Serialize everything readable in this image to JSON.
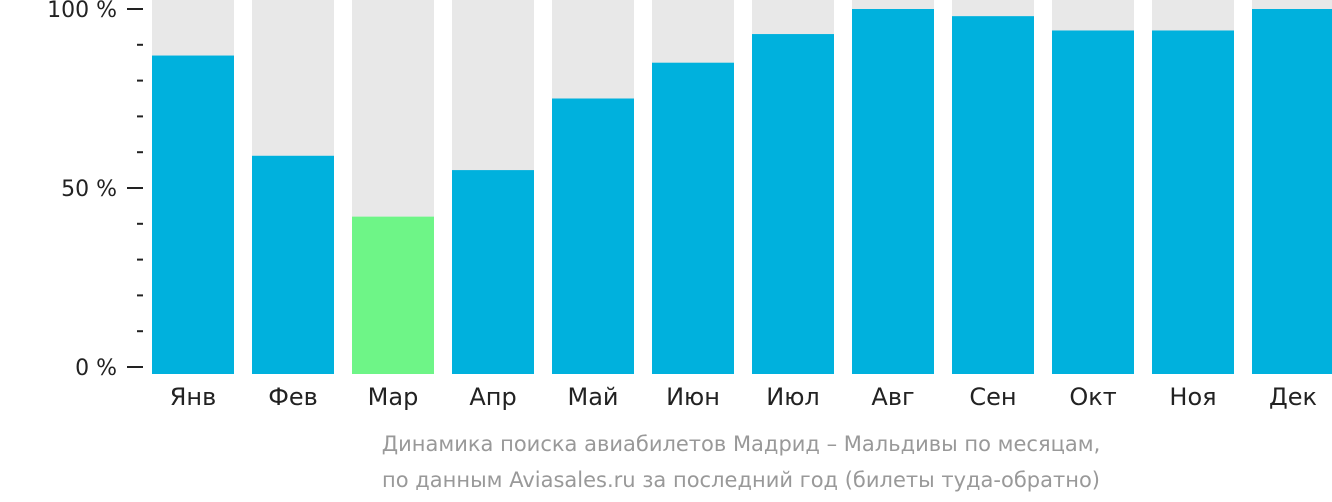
{
  "chart_data": {
    "type": "bar",
    "categories": [
      "Янв",
      "Фев",
      "Мар",
      "Апр",
      "Май",
      "Июн",
      "Июл",
      "Авг",
      "Сен",
      "Окт",
      "Ноя",
      "Дек"
    ],
    "values": [
      87,
      59,
      42,
      55,
      75,
      85,
      93,
      100,
      98,
      94,
      94,
      100
    ],
    "highlight_index": 2,
    "ylim": [
      0,
      100
    ],
    "y_tick_labels": [
      {
        "value": 0,
        "label": "0 %"
      },
      {
        "value": 50,
        "label": "50 %"
      },
      {
        "value": 100,
        "label": "100 %"
      }
    ],
    "y_minor_tick_step": 10,
    "colors": {
      "bar": "#00b1dd",
      "highlight": "#6ef587",
      "background_bar": "#e8e8e8",
      "axis": "#222222"
    },
    "caption_lines": [
      "Динамика поиска авиабилетов Мадрид – Мальдивы по месяцам,",
      "по данным Aviasales.ru за последний год (билеты туда-обратно)"
    ]
  }
}
